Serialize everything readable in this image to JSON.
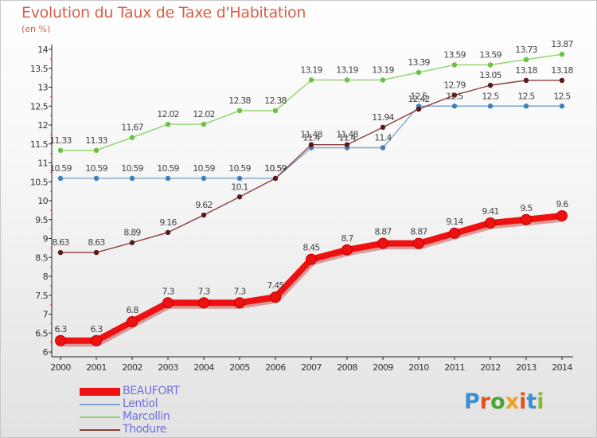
{
  "header": {
    "title": "Evolution du Taux de Taxe d'Habitation",
    "subtitle": "(en %)"
  },
  "logo": {
    "text": "Proxiti",
    "letter_colors": [
      "#3a8fd0",
      "#e6501e",
      "#4aa534",
      "#f0a020",
      "#e6501e",
      "#3a8fd0",
      "#8ab830"
    ]
  },
  "chart_data": {
    "type": "line",
    "x": [
      "2000",
      "2001",
      "2002",
      "2003",
      "2004",
      "2005",
      "2006",
      "2007",
      "2008",
      "2009",
      "2010",
      "2011",
      "2012",
      "2013",
      "2014"
    ],
    "ylim": [
      6,
      14
    ],
    "yticks": [
      "6",
      "6.5",
      "7",
      "7.5",
      "8",
      "8.5",
      "9",
      "9.5",
      "10",
      "10.5",
      "11",
      "11.5",
      "12",
      "12.5",
      "13",
      "13.5",
      "14"
    ],
    "grid": false,
    "legend_position": "bottom-left",
    "series": [
      {
        "name": "Marcollin",
        "color": "#8ed46a",
        "marker": "#6cc045",
        "values": [
          11.33,
          11.33,
          11.67,
          12.02,
          12.02,
          12.38,
          12.38,
          13.19,
          13.19,
          13.19,
          13.39,
          13.59,
          13.59,
          13.73,
          13.87
        ],
        "labels": [
          "11.33",
          "11.33",
          "11.67",
          "12.02",
          "12.02",
          "12.38",
          "12.38",
          "13.19",
          "13.19",
          "13.19",
          "13.39",
          "13.59",
          "13.59",
          "13.73",
          "13.87"
        ]
      },
      {
        "name": "Lentiol",
        "color": "#7fa6cc",
        "marker": "#3f7fbd",
        "values": [
          10.59,
          10.59,
          10.59,
          10.59,
          10.59,
          10.59,
          10.59,
          11.4,
          11.4,
          11.4,
          12.5,
          12.5,
          12.5,
          12.5,
          12.5
        ],
        "labels": [
          "10.59",
          "10.59",
          "10.59",
          "10.59",
          "10.59",
          "10.59",
          "10.59",
          "11.4",
          "11.4",
          "11.4",
          "12.5",
          "12.5",
          "12.5",
          "12.5",
          "12.5"
        ]
      },
      {
        "name": "Thodure",
        "color": "#8a3e3e",
        "marker": "#5a1a1a",
        "values": [
          8.63,
          8.63,
          8.89,
          9.16,
          9.62,
          10.1,
          10.59,
          11.48,
          11.48,
          11.94,
          12.42,
          12.79,
          13.05,
          13.18,
          13.18
        ],
        "labels": [
          "8.63",
          "8.63",
          "8.89",
          "9.16",
          "9.62",
          "10.1",
          "10.59",
          "11.48",
          "11.48",
          "11.94",
          "12.42",
          "12.79",
          "13.05",
          "13.18",
          "13.18"
        ]
      },
      {
        "name": "BEAUFORT",
        "color": "#ee1111",
        "marker": "#ee1111",
        "values": [
          6.3,
          6.3,
          6.8,
          7.3,
          7.3,
          7.3,
          7.45,
          8.45,
          8.7,
          8.87,
          8.87,
          9.14,
          9.41,
          9.5,
          9.6
        ],
        "labels": [
          "6.3",
          "6.3",
          "6.8",
          "7.3",
          "7.3",
          "7.3",
          "7.45",
          "8.45",
          "8.7",
          "8.87",
          "8.87",
          "9.14",
          "9.41",
          "9.5",
          "9.6"
        ]
      }
    ]
  },
  "legend": {
    "items": [
      {
        "label": "BEAUFORT",
        "color": "#ee1111",
        "text_color": "#6f6fe0",
        "thickness": 10
      },
      {
        "label": "Lentiol",
        "color": "#7fa6cc",
        "text_color": "#6f6fe0",
        "thickness": 2
      },
      {
        "label": "Marcollin",
        "color": "#8ed46a",
        "text_color": "#6f6fe0",
        "thickness": 2
      },
      {
        "label": "Thodure",
        "color": "#8a3e3e",
        "text_color": "#6f6fe0",
        "thickness": 2
      }
    ]
  }
}
